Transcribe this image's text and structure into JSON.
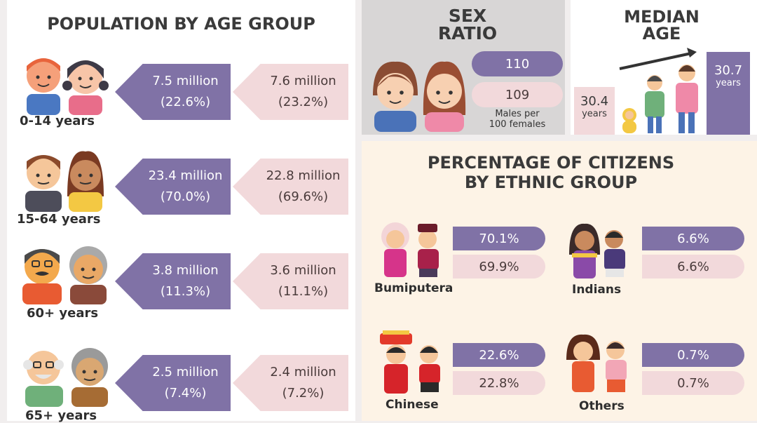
{
  "colors": {
    "male": "#8072a6",
    "female": "#f2d9db"
  },
  "population": {
    "title": "POPULATION BY AGE GROUP",
    "groups": [
      {
        "label": "0-14 years",
        "male": "7.5 million",
        "male_pct": "(22.6%)",
        "female": "7.6 million",
        "female_pct": "(23.2%)"
      },
      {
        "label": "15-64 years",
        "male": "23.4 million",
        "male_pct": "(70.0%)",
        "female": "22.8 million",
        "female_pct": "(69.6%)"
      },
      {
        "label": "60+ years",
        "male": "3.8 million",
        "male_pct": "(11.3%)",
        "female": "3.6 million",
        "female_pct": "(11.1%)"
      },
      {
        "label": "65+ years",
        "male": "2.5 million",
        "male_pct": "(7.4%)",
        "female": "2.4 million",
        "female_pct": "(7.2%)"
      }
    ]
  },
  "sex_ratio": {
    "title_1": "SEX",
    "title_2": "RATIO",
    "value_1": "110",
    "value_2": "109",
    "caption_1": "Males per",
    "caption_2": "100 females"
  },
  "median_age": {
    "title_1": "MEDIAN",
    "title_2": "AGE",
    "left_value": "30.4",
    "left_unit": "years",
    "right_value": "30.7",
    "right_unit": "years"
  },
  "ethnic": {
    "title_1": "PERCENTAGE OF CITIZENS",
    "title_2": "BY ETHNIC GROUP",
    "groups": [
      {
        "label": "Bumiputera",
        "male": "70.1%",
        "female": "69.9%"
      },
      {
        "label": "Indians",
        "male": "6.6%",
        "female": "6.6%"
      },
      {
        "label": "Chinese",
        "male": "22.6%",
        "female": "22.8%"
      },
      {
        "label": "Others",
        "male": "0.7%",
        "female": "0.7%"
      }
    ]
  }
}
